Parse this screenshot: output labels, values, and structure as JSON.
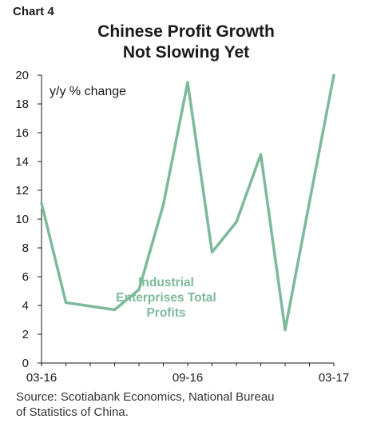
{
  "header": {
    "chart_number": "Chart 4",
    "title_line1": "Chinese Profit Growth",
    "title_line2": "Not Slowing Yet"
  },
  "footer": {
    "source_line1": "Source: Scotiabank Economics, National Bureau",
    "source_line2": "of Statistics of China."
  },
  "colors": {
    "series": "#7db99b",
    "axis": "#1a1a1a"
  },
  "chart_data": {
    "type": "line",
    "title": "Chinese Profit Growth Not Slowing Yet",
    "ylabel": "y/y % change",
    "xlabel": "",
    "ylim": [
      0,
      20
    ],
    "yticks": [
      0,
      2,
      4,
      6,
      8,
      10,
      12,
      14,
      16,
      18,
      20
    ],
    "xticks": [
      "03-16",
      "09-16",
      "03-17"
    ],
    "grid": false,
    "x": [
      "03-16",
      "04-16",
      "05-16",
      "06-16",
      "07-16",
      "08-16",
      "09-16",
      "10-16",
      "11-16",
      "12-16",
      "01-17",
      "02-17",
      "03-17"
    ],
    "series": [
      {
        "name": "Industrial Enterprises Total Profits",
        "values": [
          11.1,
          4.2,
          null,
          3.7,
          5.1,
          11.0,
          19.5,
          7.7,
          9.8,
          14.5,
          2.3,
          11.2,
          20.0
        ]
      }
    ]
  }
}
